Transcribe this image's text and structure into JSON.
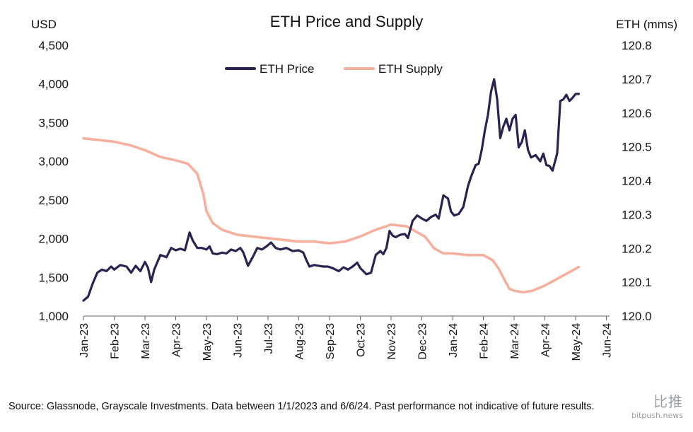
{
  "chart_data": {
    "type": "line",
    "title": "ETH Price and Supply",
    "y_left_label": "USD",
    "y_right_label": "ETH (mms)",
    "y_left_ticks": [
      "1,000",
      "1,500",
      "2,000",
      "2,500",
      "3,000",
      "3,500",
      "4,000",
      "4,500"
    ],
    "y_right_ticks": [
      "120.0",
      "120.1",
      "120.2",
      "120.3",
      "120.4",
      "120.5",
      "120.6",
      "120.7",
      "120.8"
    ],
    "ylim_left": [
      1000,
      4500
    ],
    "ylim_right": [
      120.0,
      120.8
    ],
    "x_ticks": [
      "Jan-23",
      "Feb-23",
      "Mar-23",
      "Apr-23",
      "May-23",
      "Jun-23",
      "Jul-23",
      "Aug-23",
      "Sep-23",
      "Oct-23",
      "Nov-23",
      "Dec-23",
      "Jan-24",
      "Feb-24",
      "Mar-24",
      "Apr-24",
      "May-24",
      "Jun-24"
    ],
    "xlim": [
      0,
      17.2
    ],
    "grid": false,
    "legend_position": "top-center",
    "series": [
      {
        "name": "ETH Price",
        "axis": "left",
        "color": "#272451",
        "points": [
          [
            0,
            1200
          ],
          [
            0.15,
            1250
          ],
          [
            0.3,
            1420
          ],
          [
            0.45,
            1560
          ],
          [
            0.6,
            1600
          ],
          [
            0.75,
            1580
          ],
          [
            0.9,
            1640
          ],
          [
            1.0,
            1600
          ],
          [
            1.2,
            1660
          ],
          [
            1.4,
            1640
          ],
          [
            1.55,
            1560
          ],
          [
            1.7,
            1650
          ],
          [
            1.85,
            1580
          ],
          [
            2.0,
            1700
          ],
          [
            2.1,
            1620
          ],
          [
            2.2,
            1440
          ],
          [
            2.3,
            1600
          ],
          [
            2.5,
            1790
          ],
          [
            2.7,
            1760
          ],
          [
            2.85,
            1880
          ],
          [
            3.0,
            1850
          ],
          [
            3.15,
            1870
          ],
          [
            3.3,
            1850
          ],
          [
            3.45,
            2080
          ],
          [
            3.55,
            1980
          ],
          [
            3.7,
            1880
          ],
          [
            3.85,
            1880
          ],
          [
            4.0,
            1860
          ],
          [
            4.1,
            1900
          ],
          [
            4.2,
            1810
          ],
          [
            4.35,
            1800
          ],
          [
            4.5,
            1820
          ],
          [
            4.65,
            1810
          ],
          [
            4.8,
            1860
          ],
          [
            4.95,
            1840
          ],
          [
            5.1,
            1880
          ],
          [
            5.2,
            1820
          ],
          [
            5.35,
            1650
          ],
          [
            5.5,
            1760
          ],
          [
            5.65,
            1880
          ],
          [
            5.8,
            1860
          ],
          [
            5.95,
            1900
          ],
          [
            6.1,
            1950
          ],
          [
            6.25,
            1880
          ],
          [
            6.4,
            1860
          ],
          [
            6.6,
            1880
          ],
          [
            6.8,
            1840
          ],
          [
            7.0,
            1850
          ],
          [
            7.15,
            1820
          ],
          [
            7.25,
            1720
          ],
          [
            7.35,
            1640
          ],
          [
            7.5,
            1660
          ],
          [
            7.65,
            1650
          ],
          [
            7.8,
            1640
          ],
          [
            7.95,
            1640
          ],
          [
            8.1,
            1620
          ],
          [
            8.3,
            1580
          ],
          [
            8.45,
            1630
          ],
          [
            8.6,
            1600
          ],
          [
            8.75,
            1640
          ],
          [
            8.9,
            1690
          ],
          [
            9.0,
            1620
          ],
          [
            9.1,
            1580
          ],
          [
            9.2,
            1540
          ],
          [
            9.35,
            1560
          ],
          [
            9.5,
            1790
          ],
          [
            9.65,
            1840
          ],
          [
            9.75,
            1800
          ],
          [
            9.85,
            1880
          ],
          [
            9.95,
            2100
          ],
          [
            10.05,
            2040
          ],
          [
            10.15,
            2020
          ],
          [
            10.3,
            2050
          ],
          [
            10.45,
            2060
          ],
          [
            10.55,
            2010
          ],
          [
            10.7,
            2230
          ],
          [
            10.85,
            2300
          ],
          [
            11.0,
            2260
          ],
          [
            11.15,
            2230
          ],
          [
            11.3,
            2280
          ],
          [
            11.45,
            2310
          ],
          [
            11.55,
            2260
          ],
          [
            11.7,
            2560
          ],
          [
            11.85,
            2520
          ],
          [
            11.95,
            2350
          ],
          [
            12.05,
            2300
          ],
          [
            12.2,
            2320
          ],
          [
            12.35,
            2410
          ],
          [
            12.5,
            2680
          ],
          [
            12.6,
            2800
          ],
          [
            12.75,
            2950
          ],
          [
            12.85,
            2970
          ],
          [
            12.95,
            3150
          ],
          [
            13.05,
            3400
          ],
          [
            13.15,
            3600
          ],
          [
            13.25,
            3900
          ],
          [
            13.35,
            4060
          ],
          [
            13.45,
            3800
          ],
          [
            13.55,
            3300
          ],
          [
            13.65,
            3450
          ],
          [
            13.75,
            3550
          ],
          [
            13.85,
            3400
          ],
          [
            13.95,
            3550
          ],
          [
            14.05,
            3600
          ],
          [
            14.15,
            3180
          ],
          [
            14.25,
            3250
          ],
          [
            14.35,
            3400
          ],
          [
            14.45,
            3150
          ],
          [
            14.55,
            3050
          ],
          [
            14.7,
            3080
          ],
          [
            14.85,
            3000
          ],
          [
            14.95,
            3100
          ],
          [
            15.05,
            2950
          ],
          [
            15.15,
            2940
          ],
          [
            15.25,
            2880
          ],
          [
            15.4,
            3100
          ],
          [
            15.5,
            3780
          ],
          [
            15.6,
            3800
          ],
          [
            15.7,
            3860
          ],
          [
            15.8,
            3780
          ],
          [
            15.9,
            3820
          ],
          [
            16.0,
            3870
          ],
          [
            16.1,
            3870
          ]
        ]
      },
      {
        "name": "ETH Supply",
        "axis": "right",
        "color": "#f6b09d",
        "points": [
          [
            0,
            120.525
          ],
          [
            0.5,
            120.52
          ],
          [
            1.0,
            120.515
          ],
          [
            1.5,
            120.505
          ],
          [
            2.0,
            120.49
          ],
          [
            2.5,
            120.47
          ],
          [
            3.0,
            120.46
          ],
          [
            3.4,
            120.45
          ],
          [
            3.7,
            120.42
          ],
          [
            3.9,
            120.36
          ],
          [
            4.0,
            120.31
          ],
          [
            4.2,
            120.275
          ],
          [
            4.5,
            120.255
          ],
          [
            5.0,
            120.24
          ],
          [
            5.5,
            120.235
          ],
          [
            6.0,
            120.23
          ],
          [
            6.5,
            120.225
          ],
          [
            7.0,
            120.22
          ],
          [
            7.5,
            120.22
          ],
          [
            8.0,
            120.215
          ],
          [
            8.5,
            120.22
          ],
          [
            9.0,
            120.235
          ],
          [
            9.5,
            120.255
          ],
          [
            10.0,
            120.27
          ],
          [
            10.5,
            120.265
          ],
          [
            10.8,
            120.25
          ],
          [
            11.1,
            120.235
          ],
          [
            11.4,
            120.2
          ],
          [
            11.7,
            120.185
          ],
          [
            12.0,
            120.185
          ],
          [
            12.5,
            120.18
          ],
          [
            13.0,
            120.18
          ],
          [
            13.3,
            120.165
          ],
          [
            13.5,
            120.14
          ],
          [
            13.7,
            120.105
          ],
          [
            13.85,
            120.08
          ],
          [
            14.0,
            120.075
          ],
          [
            14.3,
            120.07
          ],
          [
            14.6,
            120.075
          ],
          [
            15.0,
            120.09
          ],
          [
            15.4,
            120.11
          ],
          [
            15.8,
            120.13
          ],
          [
            16.1,
            120.145
          ]
        ]
      }
    ]
  },
  "footer": {
    "source_text": "Source: Glassnode, Grayscale Investments. Data between 1/1/2023 and 6/6/24. Past performance not indicative of future results."
  },
  "watermark": {
    "chinese": "比推",
    "domain": "bitpush.news"
  }
}
